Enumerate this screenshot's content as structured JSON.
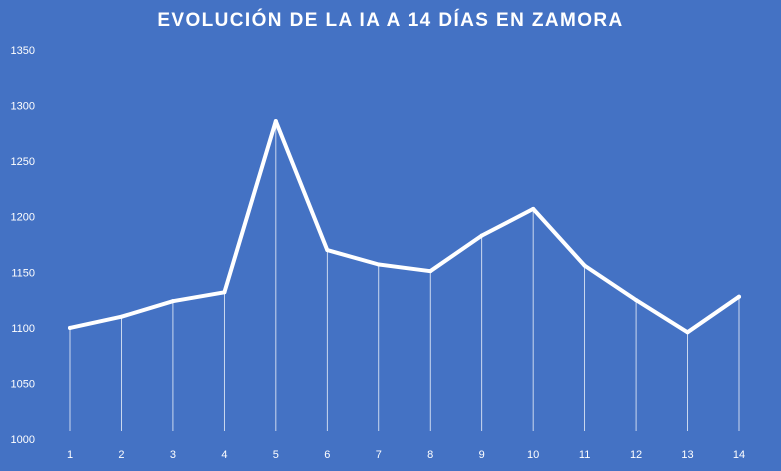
{
  "chart_data": {
    "type": "line",
    "title": "EVOLUCIÓN DE LA IA A 14 DÍAS EN ZAMORA",
    "xlabel": "",
    "ylabel": "",
    "categories": [
      "1",
      "2",
      "3",
      "4",
      "5",
      "6",
      "7",
      "8",
      "9",
      "10",
      "11",
      "12",
      "13",
      "14"
    ],
    "series": [
      {
        "name": "",
        "values": [
          1100,
          1110,
          1124,
          1132,
          1286,
          1170,
          1157,
          1151,
          1183,
          1207,
          1156,
          1125,
          1096,
          1128
        ]
      }
    ],
    "ylim": [
      1000,
      1350
    ],
    "yticks": [
      "1000",
      "1050",
      "1100",
      "1150",
      "1200",
      "1250",
      "1300",
      "1350"
    ],
    "grid": false,
    "drop_lines": true,
    "legend": "none",
    "colors": {
      "background": "#4472C4",
      "line": "#FFFFFF",
      "text": "#FFFFFF"
    }
  }
}
